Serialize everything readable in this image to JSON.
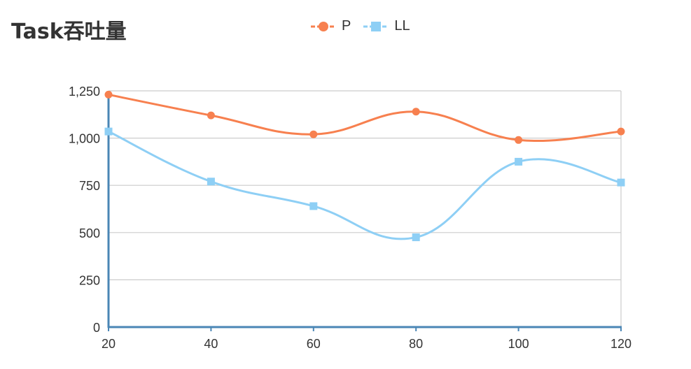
{
  "chart_data": {
    "type": "line",
    "title": "Task吞吐量",
    "x": [
      20,
      40,
      60,
      80,
      100,
      120
    ],
    "series": [
      {
        "name": "P",
        "values": [
          1230,
          1120,
          1020,
          1140,
          990,
          1035
        ],
        "color": "#f7804f",
        "marker": "circle"
      },
      {
        "name": "LL",
        "values": [
          1035,
          770,
          640,
          475,
          875,
          765
        ],
        "color": "#8ecff5",
        "marker": "square"
      }
    ],
    "yticks": [
      0,
      250,
      500,
      750,
      1000,
      1250
    ],
    "ytick_labels": [
      "0",
      "250",
      "500",
      "750",
      "1,000",
      "1,250"
    ],
    "xtick_labels": [
      "20",
      "40",
      "60",
      "80",
      "100",
      "120"
    ],
    "ylim": [
      0,
      1250
    ],
    "xlim": [
      20,
      120
    ],
    "grid": true,
    "legend": "top-center",
    "axis_color": "#4a86b5",
    "grid_color": "#cccccc"
  }
}
